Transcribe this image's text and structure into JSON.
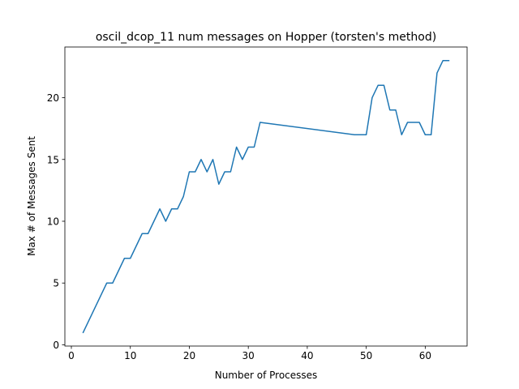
{
  "chart_data": {
    "type": "line",
    "title": "oscil_dcop_11 num messages on Hopper (torsten's method)",
    "xlabel": "Number of Processes",
    "ylabel": "Max # of Messages Sent",
    "xlim": [
      -1.1,
      67.1
    ],
    "ylim": [
      -0.1,
      24.1
    ],
    "xticks": [
      0,
      10,
      20,
      30,
      40,
      50,
      60
    ],
    "yticks": [
      0,
      5,
      10,
      15,
      20
    ],
    "grid": false,
    "series": [
      {
        "color": "#1f77b4",
        "x": [
          2,
          6,
          7,
          9,
          10,
          12,
          13,
          15,
          16,
          17,
          18,
          19,
          20,
          21,
          22,
          23,
          24,
          25,
          26,
          27,
          28,
          29,
          30,
          31,
          32,
          48,
          50,
          51,
          52,
          53,
          54,
          55,
          56,
          57,
          58,
          59,
          60,
          61,
          62,
          63,
          64
        ],
        "y": [
          1,
          5,
          5,
          7,
          7,
          9,
          9,
          11,
          10,
          11,
          11,
          12,
          14,
          14,
          15,
          14,
          15,
          13,
          14,
          14,
          16,
          15,
          16,
          16,
          18,
          17,
          17,
          20,
          21,
          21,
          19,
          19,
          17,
          18,
          18,
          18,
          17,
          17,
          22,
          23,
          23
        ]
      }
    ]
  }
}
